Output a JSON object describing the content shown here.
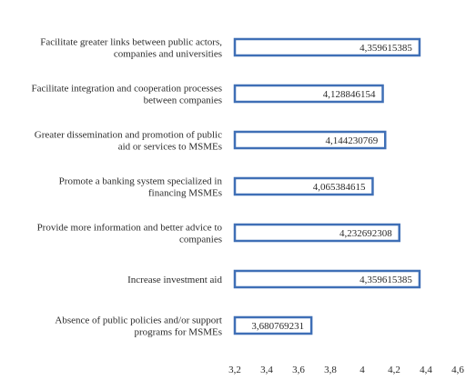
{
  "chart_data": {
    "type": "bar",
    "orientation": "horizontal",
    "categories": [
      [
        "Facilitate greater links between public actors,",
        "companies and universities"
      ],
      [
        "Facilitate integration and cooperation processes",
        "between companies"
      ],
      [
        "Greater dissemination and promotion of public",
        "aid or services to MSMEs"
      ],
      [
        "Promote a banking system specialized in",
        "financing MSMEs"
      ],
      [
        "Provide more information and better advice to",
        "companies"
      ],
      [
        "Increase investment aid"
      ],
      [
        "Absence of public policies and/or support",
        "programs for MSMEs"
      ]
    ],
    "values": [
      4.359615385,
      4.128846154,
      4.144230769,
      4.065384615,
      4.232692308,
      4.359615385,
      3.680769231
    ],
    "value_labels": [
      "4,359615385",
      "4,128846154",
      "4,144230769",
      "4,065384615",
      "4,232692308",
      "4,359615385",
      "3,680769231"
    ],
    "xlim": [
      3.2,
      4.6
    ],
    "xticks": [
      3.2,
      3.4,
      3.6,
      3.8,
      4.0,
      4.2,
      4.4,
      4.6
    ],
    "xtick_labels": [
      "3,2",
      "3,4",
      "3,6",
      "3,8",
      "4",
      "4,2",
      "4,4",
      "4,6"
    ],
    "grid": false,
    "legend": "none",
    "bar_style": "white fill with blue outline",
    "colors": {
      "bar_stroke": "#3f6fb6",
      "bar_fill": "#ffffff",
      "text": "#2b2b2b"
    }
  }
}
